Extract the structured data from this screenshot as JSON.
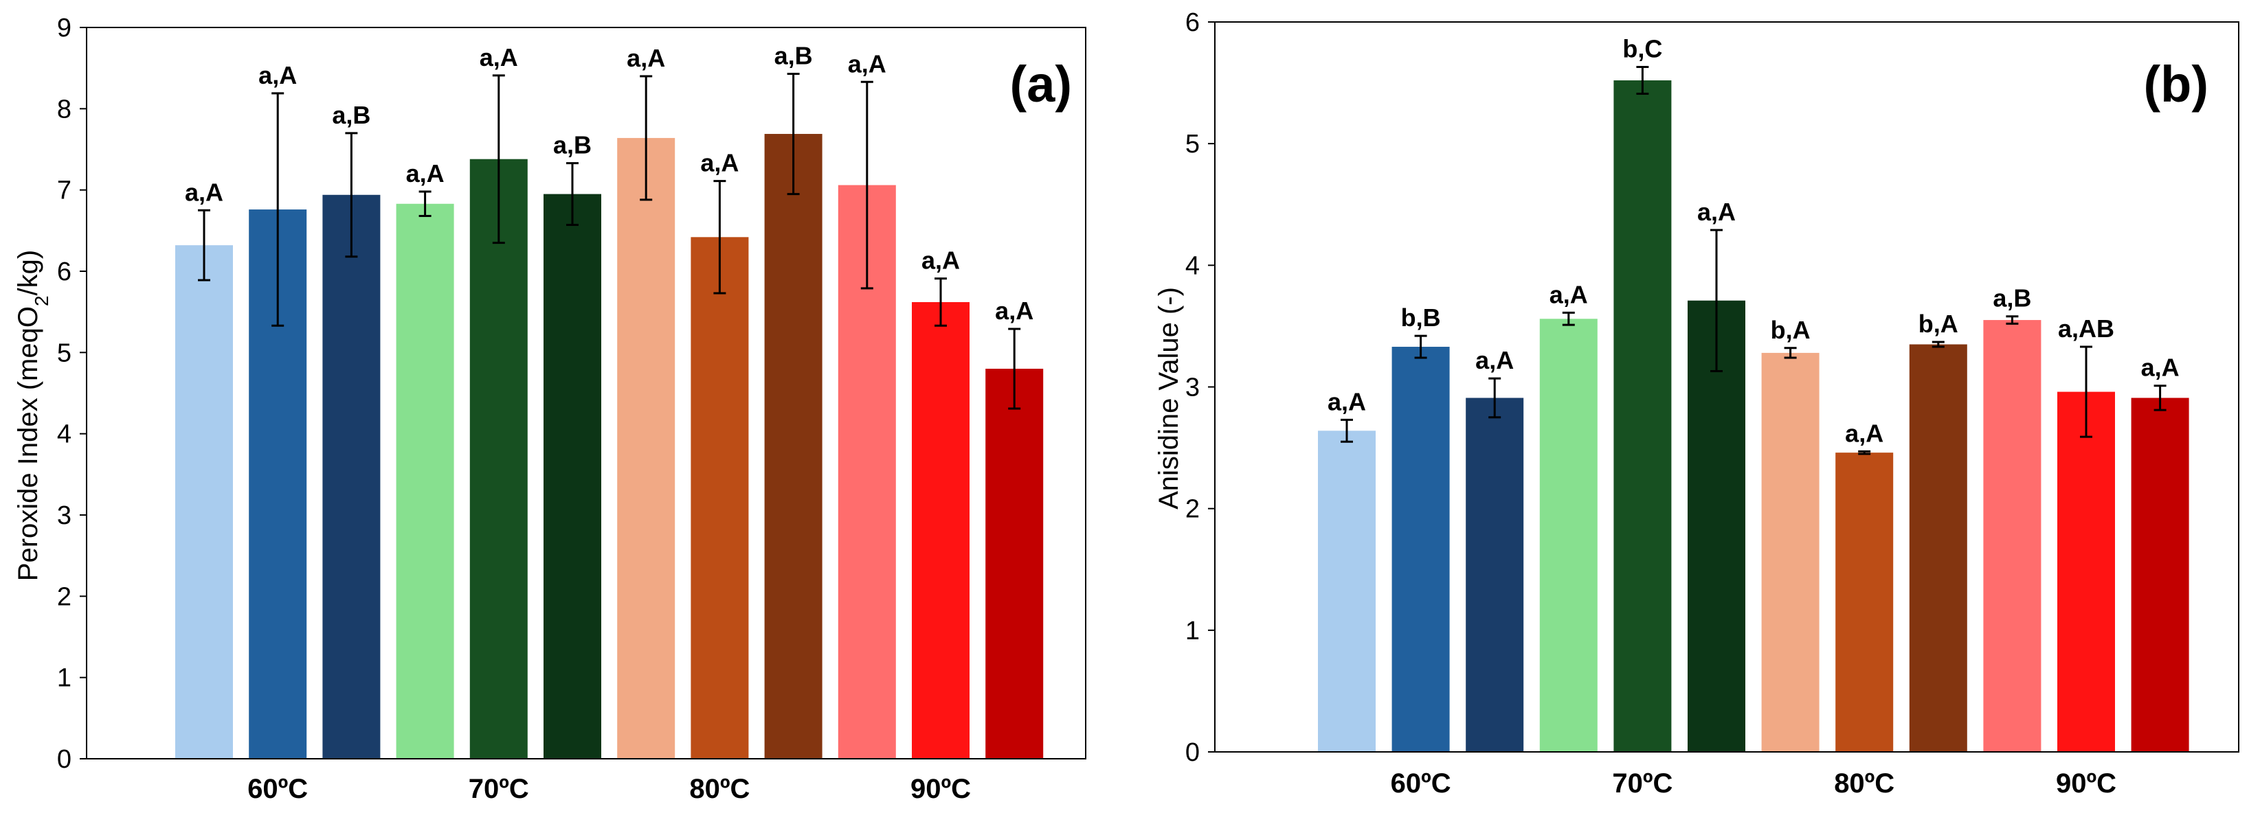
{
  "chart_data": [
    {
      "type": "bar",
      "panel_label": "(a)",
      "title": "",
      "xlabel": "",
      "ylabel_main": "Peroxide Index (meqO",
      "ylabel_sub": "2",
      "ylabel_tail": "/kg)",
      "ylim": [
        0,
        9
      ],
      "yticks": [
        "0",
        "1",
        "2",
        "3",
        "4",
        "5",
        "6",
        "7",
        "8",
        "9"
      ],
      "grid": false,
      "groups": [
        "60ºC",
        "70ºC",
        "80ºC",
        "90ºC"
      ],
      "bars": [
        {
          "group": "60ºC",
          "value": 6.32,
          "error": 0.43,
          "label": "a,A",
          "color": "#A9CCEE"
        },
        {
          "group": "60ºC",
          "value": 6.76,
          "error": 1.43,
          "label": "a,A",
          "color": "#21609D"
        },
        {
          "group": "60ºC",
          "value": 6.94,
          "error": 0.76,
          "label": "a,B",
          "color": "#1A3D69"
        },
        {
          "group": "70ºC",
          "value": 6.83,
          "error": 0.15,
          "label": "a,A",
          "color": "#87E08F"
        },
        {
          "group": "70ºC",
          "value": 7.38,
          "error": 1.03,
          "label": "a,A",
          "color": "#175021"
        },
        {
          "group": "70ºC",
          "value": 6.95,
          "error": 0.38,
          "label": "a,B",
          "color": "#0C3516"
        },
        {
          "group": "80ºC",
          "value": 7.64,
          "error": 0.76,
          "label": "a,A",
          "color": "#F1A985"
        },
        {
          "group": "80ºC",
          "value": 6.42,
          "error": 0.69,
          "label": "a,A",
          "color": "#BC4D16"
        },
        {
          "group": "80ºC",
          "value": 7.69,
          "error": 0.74,
          "label": "a,B",
          "color": "#833510"
        },
        {
          "group": "90ºC",
          "value": 7.06,
          "error": 1.27,
          "label": "a,A",
          "color": "#FF6D6D"
        },
        {
          "group": "90ºC",
          "value": 5.62,
          "error": 0.29,
          "label": "a,A",
          "color": "#FF1313"
        },
        {
          "group": "90ºC",
          "value": 4.8,
          "error": 0.49,
          "label": "a,A",
          "color": "#C20000"
        }
      ]
    },
    {
      "type": "bar",
      "panel_label": "(b)",
      "title": "",
      "xlabel": "",
      "ylabel_main": "Anisidine Value (-)",
      "ylabel_sub": "",
      "ylabel_tail": "",
      "ylim": [
        0,
        6
      ],
      "yticks": [
        "0",
        "1",
        "2",
        "3",
        "4",
        "5",
        "6"
      ],
      "grid": false,
      "groups": [
        "60ºC",
        "70ºC",
        "80ºC",
        "90ºC"
      ],
      "bars": [
        {
          "group": "60ºC",
          "value": 2.64,
          "error": 0.09,
          "label": "a,A",
          "color": "#A9CCEE"
        },
        {
          "group": "60ºC",
          "value": 3.33,
          "error": 0.09,
          "label": "b,B",
          "color": "#21609D"
        },
        {
          "group": "60ºC",
          "value": 2.91,
          "error": 0.16,
          "label": "a,A",
          "color": "#1A3D69"
        },
        {
          "group": "70ºC",
          "value": 3.56,
          "error": 0.05,
          "label": "a,A",
          "color": "#87E08F"
        },
        {
          "group": "70ºC",
          "value": 5.52,
          "error": 0.11,
          "label": "b,C",
          "color": "#175021"
        },
        {
          "group": "70ºC",
          "value": 3.71,
          "error": 0.58,
          "label": "a,A",
          "color": "#0C3516"
        },
        {
          "group": "80ºC",
          "value": 3.28,
          "error": 0.04,
          "label": "b,A",
          "color": "#F1A985"
        },
        {
          "group": "80ºC",
          "value": 2.46,
          "error": 0.01,
          "label": "a,A",
          "color": "#BC4D16"
        },
        {
          "group": "80ºC",
          "value": 3.35,
          "error": 0.02,
          "label": "b,A",
          "color": "#833510"
        },
        {
          "group": "90ºC",
          "value": 3.55,
          "error": 0.03,
          "label": "a,B",
          "color": "#FF6D6D"
        },
        {
          "group": "90ºC",
          "value": 2.96,
          "error": 0.37,
          "label": "a,AB",
          "color": "#FF1313"
        },
        {
          "group": "90ºC",
          "value": 2.91,
          "error": 0.1,
          "label": "a,A",
          "color": "#C20000"
        }
      ]
    }
  ]
}
